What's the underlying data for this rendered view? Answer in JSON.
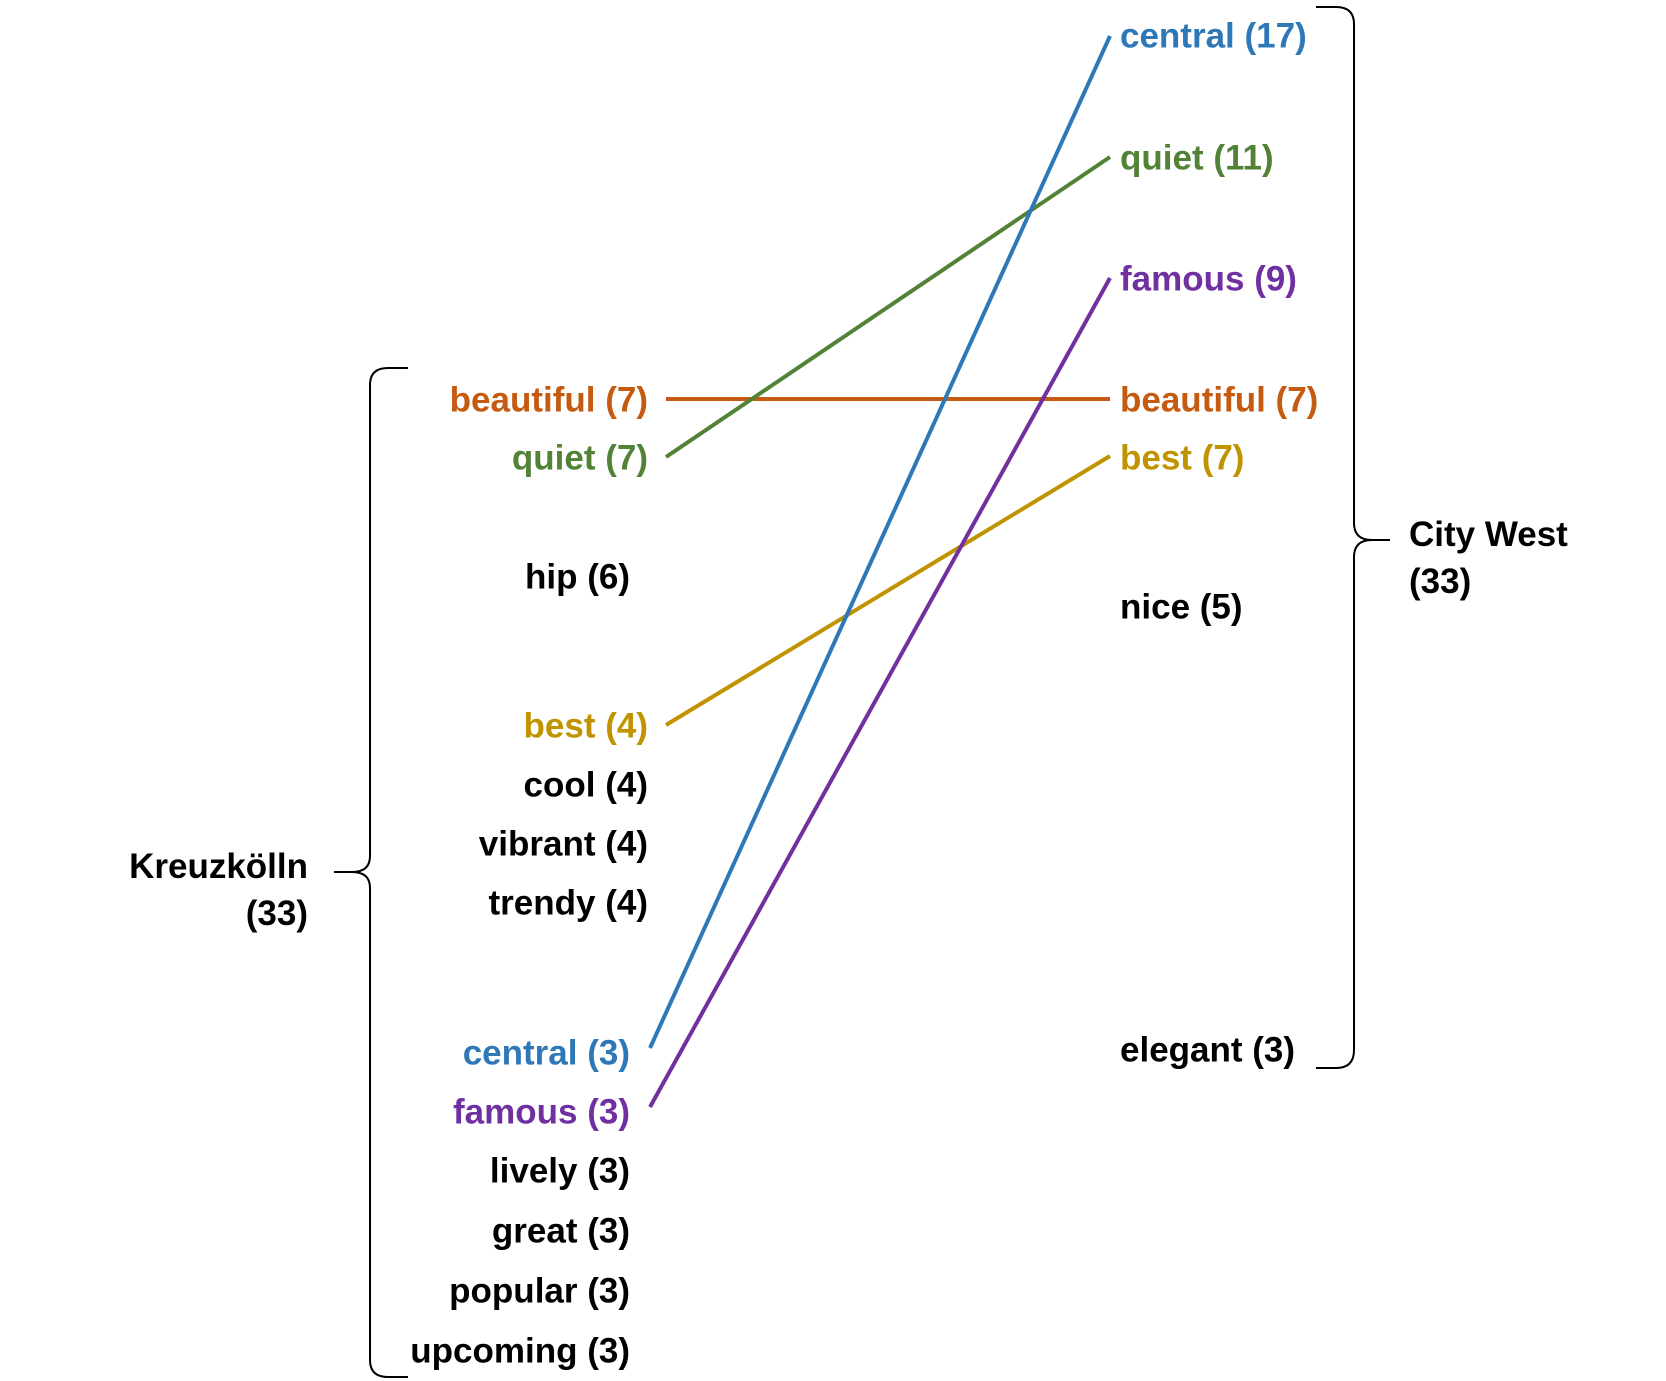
{
  "colors": {
    "default": "#000000",
    "blue": "#2f78b8",
    "green": "#528236",
    "purple": "#7030a0",
    "orange": "#c55a11",
    "gold": "#c09300"
  },
  "left_group": {
    "name": "Kreuzkölln",
    "count": "(33)",
    "terms": [
      {
        "word": "beautiful",
        "count": 7,
        "label": "beautiful (7)",
        "color": "#c55a11"
      },
      {
        "word": "quiet",
        "count": 7,
        "label": "quiet (7)",
        "color": "#528236"
      },
      {
        "word": "hip",
        "count": 6,
        "label": "hip (6)",
        "color": "#000000"
      },
      {
        "word": "best",
        "count": 4,
        "label": "best (4)",
        "color": "#c09300"
      },
      {
        "word": "cool",
        "count": 4,
        "label": "cool (4)",
        "color": "#000000"
      },
      {
        "word": "vibrant",
        "count": 4,
        "label": "vibrant (4)",
        "color": "#000000"
      },
      {
        "word": "trendy",
        "count": 4,
        "label": "trendy (4)",
        "color": "#000000"
      },
      {
        "word": "central",
        "count": 3,
        "label": "central (3)",
        "color": "#2f78b8"
      },
      {
        "word": "famous",
        "count": 3,
        "label": "famous (3)",
        "color": "#7030a0"
      },
      {
        "word": "lively",
        "count": 3,
        "label": "lively (3)",
        "color": "#000000"
      },
      {
        "word": "great",
        "count": 3,
        "label": "great (3)",
        "color": "#000000"
      },
      {
        "word": "popular",
        "count": 3,
        "label": "popular (3)",
        "color": "#000000"
      },
      {
        "word": "upcoming",
        "count": 3,
        "label": "upcoming (3)",
        "color": "#000000"
      }
    ]
  },
  "right_group": {
    "name": "City West",
    "count": "(33)",
    "terms": [
      {
        "word": "central",
        "count": 17,
        "label": "central (17)",
        "color": "#2f78b8"
      },
      {
        "word": "quiet",
        "count": 11,
        "label": "quiet (11)",
        "color": "#528236"
      },
      {
        "word": "famous",
        "count": 9,
        "label": "famous (9)",
        "color": "#7030a0"
      },
      {
        "word": "beautiful",
        "count": 7,
        "label": "beautiful (7)",
        "color": "#c55a11"
      },
      {
        "word": "best",
        "count": 7,
        "label": "best (7)",
        "color": "#c09300"
      },
      {
        "word": "nice",
        "count": 5,
        "label": "nice (5)",
        "color": "#000000"
      },
      {
        "word": "elegant",
        "count": 3,
        "label": "elegant (3)",
        "color": "#000000"
      }
    ]
  },
  "connections": [
    {
      "word": "beautiful",
      "color": "#c55a11"
    },
    {
      "word": "quiet",
      "color": "#528236"
    },
    {
      "word": "best",
      "color": "#c09300"
    },
    {
      "word": "central",
      "color": "#2f78b8"
    },
    {
      "word": "famous",
      "color": "#7030a0"
    }
  ]
}
